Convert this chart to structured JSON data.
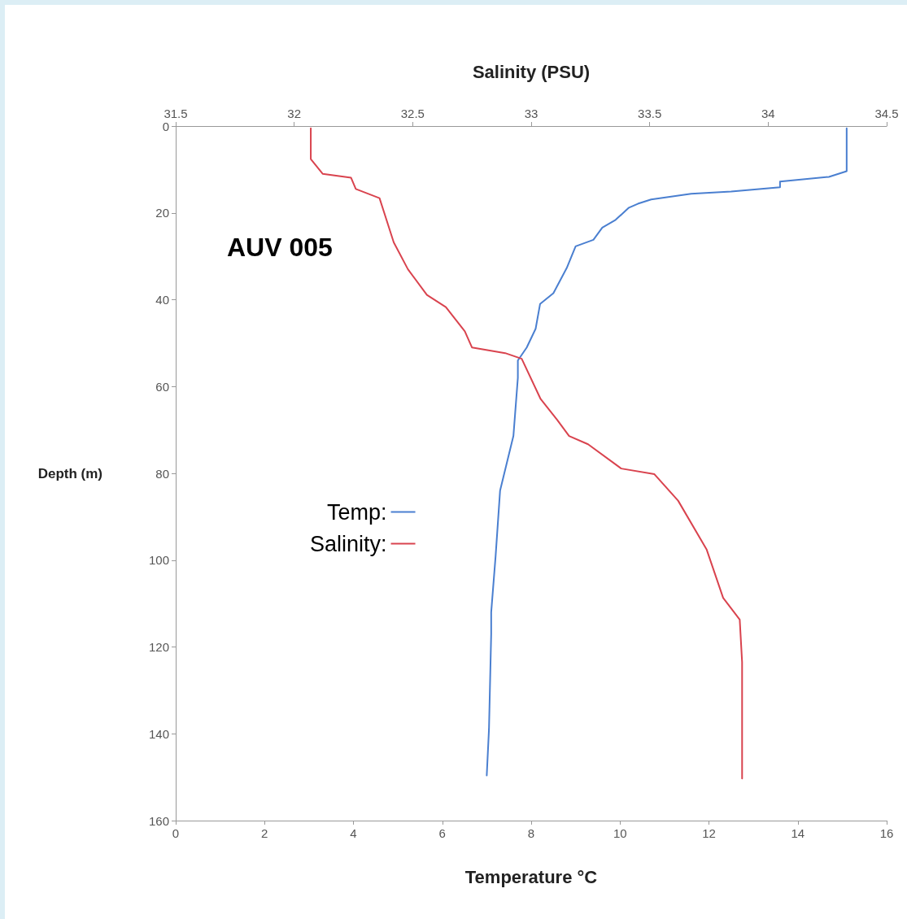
{
  "chart_data": {
    "type": "line",
    "xlabel": "Temperature °C",
    "x2label": "Salinity (PSU)",
    "ylabel": "Depth (m)",
    "annotations": [
      "AUV 005"
    ],
    "xlim": [
      0,
      16
    ],
    "xticks": [
      0,
      2,
      4,
      6,
      8,
      10,
      12,
      14,
      16
    ],
    "x2lim": [
      31.5,
      34.5
    ],
    "x2ticks": [
      31.5,
      32,
      32.5,
      33,
      33.5,
      34,
      34.5
    ],
    "ylim": [
      160,
      0
    ],
    "yticks": [
      0,
      20,
      40,
      60,
      80,
      100,
      120,
      140,
      160
    ],
    "grid": false,
    "legend": "left",
    "marker": "none",
    "line_style": "solid",
    "series": [
      {
        "name": "Temp:",
        "color": "#4a7fd0",
        "x": [
          15.1,
          15.1,
          14.7,
          13.6,
          13.6,
          12.5,
          11.6,
          10.7,
          10.4,
          10.2,
          9.9,
          9.6,
          9.4,
          9.0,
          8.8,
          8.5,
          8.2,
          8.1,
          7.9,
          7.7,
          7.7,
          7.6,
          7.3,
          7.2,
          7.1,
          7.1,
          7.05,
          7.0
        ],
        "values": [
          0.5,
          10.4,
          11.7,
          12.8,
          14.1,
          15.1,
          15.6,
          16.9,
          17.9,
          18.8,
          21.6,
          23.4,
          26.2,
          27.7,
          32.7,
          38.5,
          41,
          46.7,
          51,
          54,
          58,
          71.4,
          84,
          99,
          112,
          117,
          139,
          149.6
        ]
      },
      {
        "name": "Salinity:",
        "color": "#d9434e",
        "axis": "x2",
        "x": [
          32.07,
          32.07,
          32.12,
          32.24,
          32.26,
          32.36,
          32.42,
          32.48,
          32.56,
          32.64,
          32.72,
          32.75,
          32.89,
          32.96,
          33.04,
          33.11,
          33.16,
          33.24,
          33.38,
          33.52,
          33.62,
          33.74,
          33.81,
          33.88,
          33.89,
          33.89,
          33.89
        ],
        "values": [
          0.5,
          7.6,
          11,
          11.9,
          14.5,
          16.6,
          26.8,
          33,
          38.9,
          41.7,
          47.3,
          51,
          52.3,
          53.6,
          62.9,
          67.7,
          71.4,
          73.3,
          78.9,
          80.2,
          86.3,
          97.5,
          108.7,
          113.7,
          123.5,
          142,
          150.3
        ]
      }
    ]
  }
}
